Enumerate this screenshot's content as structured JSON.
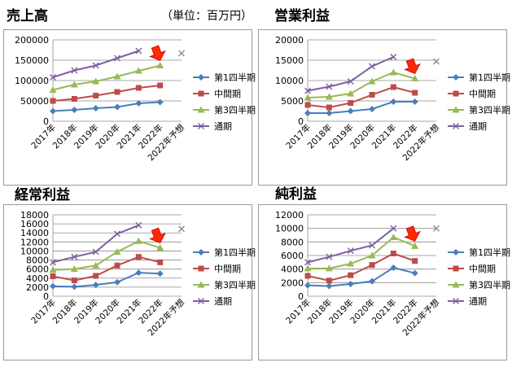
{
  "page": {
    "unit_note": "（単位：百万円）"
  },
  "legend": [
    "第1四半期",
    "中間期",
    "第3四半期",
    "通期"
  ],
  "colors": {
    "q1": "#4a7ebb",
    "half": "#be4b48",
    "q3": "#98b954",
    "full": "#7d60a0",
    "arrow_fill": "#ff2a00",
    "arrow_stroke": "#c00000",
    "grid": "#8c8c8c",
    "forecast_mark": "#8a8a8a"
  },
  "categories": [
    "2017年",
    "2018年",
    "2019年",
    "2020年",
    "2021年",
    "2022年",
    "2022年予想"
  ],
  "chart_data": [
    {
      "type": "line",
      "title": "売上高",
      "ylim": [
        0,
        200000
      ],
      "yticks": [
        0,
        50000,
        100000,
        150000,
        200000
      ],
      "series": [
        {
          "name": "第1四半期",
          "values": [
            25000,
            28000,
            32000,
            35000,
            44000,
            47000,
            null
          ]
        },
        {
          "name": "中間期",
          "values": [
            50000,
            55000,
            63000,
            72000,
            82000,
            88000,
            null
          ]
        },
        {
          "name": "第3四半期",
          "values": [
            77000,
            90000,
            98000,
            110000,
            124000,
            137000,
            null
          ]
        },
        {
          "name": "通期",
          "values": [
            108000,
            125000,
            137000,
            155000,
            173000,
            null,
            167000
          ]
        }
      ],
      "arrow_at": 5
    },
    {
      "type": "line",
      "title": "営業利益",
      "ylim": [
        0,
        20000
      ],
      "yticks": [
        0,
        5000,
        10000,
        15000,
        20000
      ],
      "series": [
        {
          "name": "第1四半期",
          "values": [
            2000,
            2000,
            2500,
            3000,
            4800,
            4800,
            null
          ]
        },
        {
          "name": "中間期",
          "values": [
            4000,
            3400,
            4500,
            6500,
            8400,
            7000,
            null
          ]
        },
        {
          "name": "第3四半期",
          "values": [
            5800,
            6000,
            6800,
            9800,
            12000,
            10500,
            null
          ]
        },
        {
          "name": "通期",
          "values": [
            7500,
            8500,
            9800,
            13500,
            15800,
            null,
            14700
          ]
        }
      ],
      "arrow_at": 5
    },
    {
      "type": "line",
      "title": "経常利益",
      "ylim": [
        0,
        18000
      ],
      "yticks": [
        0,
        2000,
        4000,
        6000,
        8000,
        10000,
        12000,
        14000,
        16000,
        18000
      ],
      "series": [
        {
          "name": "第1四半期",
          "values": [
            2200,
            2100,
            2500,
            3100,
            5200,
            5000,
            null
          ]
        },
        {
          "name": "中間期",
          "values": [
            4400,
            3500,
            4500,
            6800,
            8700,
            7500,
            null
          ]
        },
        {
          "name": "第3四半期",
          "values": [
            5800,
            6000,
            6800,
            9800,
            12200,
            10700,
            null
          ]
        },
        {
          "name": "通期",
          "values": [
            7500,
            8700,
            9800,
            13800,
            15700,
            null,
            14900
          ]
        }
      ],
      "arrow_at": 5
    },
    {
      "type": "line",
      "title": "純利益",
      "ylim": [
        0,
        12000
      ],
      "yticks": [
        0,
        2000,
        4000,
        6000,
        8000,
        10000,
        12000
      ],
      "series": [
        {
          "name": "第1四半期",
          "values": [
            1600,
            1500,
            1800,
            2200,
            4200,
            3400,
            null
          ]
        },
        {
          "name": "中間期",
          "values": [
            3000,
            2300,
            3100,
            4600,
            6300,
            5200,
            null
          ]
        },
        {
          "name": "第3四半期",
          "values": [
            4100,
            4100,
            4800,
            6000,
            8700,
            7400,
            null
          ]
        },
        {
          "name": "通期",
          "values": [
            5000,
            5800,
            6700,
            7500,
            10000,
            null,
            10000
          ]
        }
      ],
      "arrow_at": 5
    }
  ]
}
